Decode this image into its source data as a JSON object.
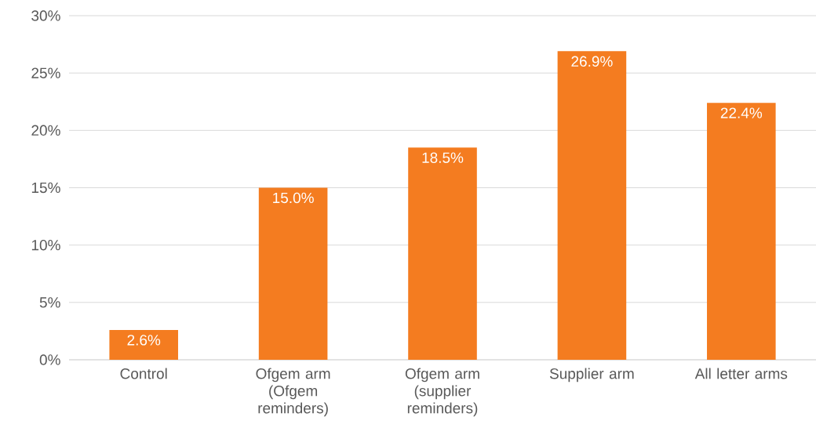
{
  "chart_data": {
    "type": "bar",
    "categories": [
      "Control",
      "Ofgem arm (Ofgem reminders)",
      "Ofgem arm (supplier reminders)",
      "Supplier arm",
      "All letter arms"
    ],
    "values": [
      2.6,
      15.0,
      18.5,
      26.9,
      22.4
    ],
    "value_labels": [
      "2.6%",
      "15.0%",
      "18.5%",
      "26.9%",
      "22.4%"
    ],
    "color": "#f47c20",
    "ylim": [
      0,
      30
    ],
    "yticks": [
      {
        "value": 0,
        "label": "0%"
      },
      {
        "value": 5,
        "label": "5%"
      },
      {
        "value": 10,
        "label": "10%"
      },
      {
        "value": 15,
        "label": "15%"
      },
      {
        "value": 20,
        "label": "20%"
      },
      {
        "value": 25,
        "label": "25%"
      },
      {
        "value": 30,
        "label": "30%"
      }
    ],
    "grid": "y"
  }
}
